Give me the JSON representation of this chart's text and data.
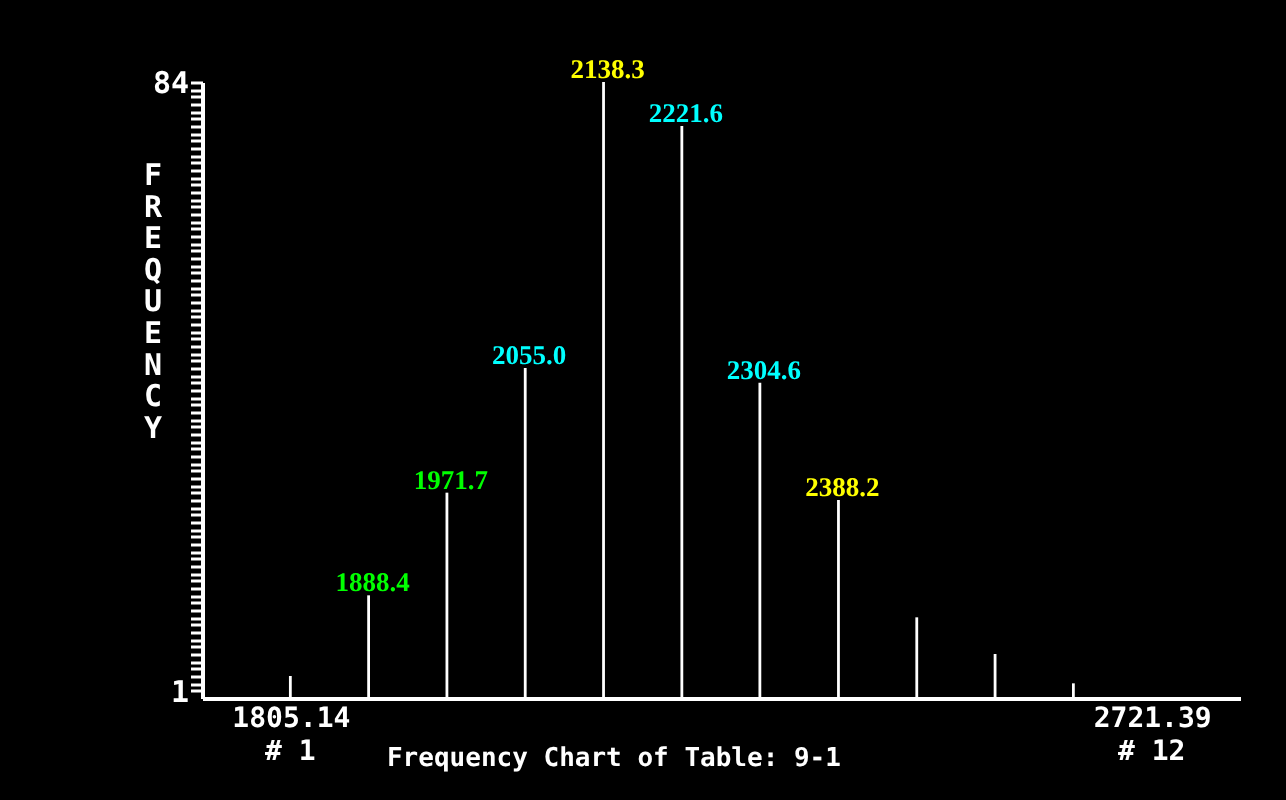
{
  "chart_data": {
    "type": "bar",
    "title": "Frequency Chart of Table: 9-1",
    "ylabel": "FREQUENCY",
    "x": [
      1805.14,
      1888.4,
      1971.7,
      2055.0,
      2138.3,
      2221.6,
      2304.6,
      2388.2,
      2471.5,
      2554.8,
      2638.1
    ],
    "series": [
      {
        "color": "#ffffff",
        "values": [
          3,
          14,
          28,
          45,
          84,
          78,
          43,
          27,
          11,
          6,
          2
        ]
      }
    ],
    "xlim": [
      1721.8,
      2804.7
    ],
    "xticks": [
      {
        "value": 1805.14,
        "label": "1805.14"
      },
      {
        "value": 2721.39,
        "label": "2721.39"
      }
    ],
    "ylim": [
      0,
      84
    ],
    "yticks": [
      1,
      {
        "value": 2,
        "label": null
      },
      {
        "value": 3,
        "label": null
      },
      {
        "value": 4,
        "label": null
      },
      {
        "value": 5,
        "label": null
      },
      {
        "value": 6,
        "label": null
      },
      {
        "value": 7,
        "label": null
      },
      {
        "value": 8,
        "label": null
      },
      {
        "value": 9,
        "label": null
      },
      {
        "value": 10,
        "label": null
      },
      {
        "value": 11,
        "label": null
      },
      {
        "value": 12,
        "label": null
      },
      {
        "value": 13,
        "label": null
      },
      {
        "value": 14,
        "label": null
      },
      {
        "value": 15,
        "label": null
      },
      {
        "value": 16,
        "label": null
      },
      {
        "value": 17,
        "label": null
      },
      {
        "value": 18,
        "label": null
      },
      {
        "value": 19,
        "label": null
      },
      {
        "value": 20,
        "label": null
      },
      {
        "value": 21,
        "label": null
      },
      {
        "value": 22,
        "label": null
      },
      {
        "value": 23,
        "label": null
      },
      {
        "value": 24,
        "label": null
      },
      {
        "value": 25,
        "label": null
      },
      {
        "value": 26,
        "label": null
      },
      {
        "value": 27,
        "label": null
      },
      {
        "value": 28,
        "label": null
      },
      {
        "value": 29,
        "label": null
      },
      {
        "value": 30,
        "label": null
      },
      {
        "value": 31,
        "label": null
      },
      {
        "value": 32,
        "label": null
      },
      {
        "value": 33,
        "label": null
      },
      {
        "value": 34,
        "label": null
      },
      {
        "value": 35,
        "label": null
      },
      {
        "value": 36,
        "label": null
      },
      {
        "value": 37,
        "label": null
      },
      {
        "value": 38,
        "label": null
      },
      {
        "value": 39,
        "label": null
      },
      {
        "value": 40,
        "label": null
      },
      {
        "value": 41,
        "label": null
      },
      {
        "value": 42,
        "label": null
      },
      {
        "value": 43,
        "label": null
      },
      {
        "value": 44,
        "label": null
      },
      {
        "value": 45,
        "label": null
      },
      {
        "value": 46,
        "label": null
      },
      {
        "value": 47,
        "label": null
      },
      {
        "value": 48,
        "label": null
      },
      {
        "value": 49,
        "label": null
      },
      {
        "value": 50,
        "label": null
      },
      {
        "value": 51,
        "label": null
      },
      {
        "value": 52,
        "label": null
      },
      {
        "value": 53,
        "label": null
      },
      {
        "value": 54,
        "label": null
      },
      {
        "value": 55,
        "label": null
      },
      {
        "value": 56,
        "label": null
      },
      {
        "value": 57,
        "label": null
      },
      {
        "value": 58,
        "label": null
      },
      {
        "value": 59,
        "label": null
      },
      {
        "value": 60,
        "label": null
      },
      {
        "value": 61,
        "label": null
      },
      {
        "value": 62,
        "label": null
      },
      {
        "value": 63,
        "label": null
      },
      {
        "value": 64,
        "label": null
      },
      {
        "value": 65,
        "label": null
      },
      {
        "value": 66,
        "label": null
      },
      {
        "value": 67,
        "label": null
      },
      {
        "value": 68,
        "label": null
      },
      {
        "value": 69,
        "label": null
      },
      {
        "value": 70,
        "label": null
      },
      {
        "value": 71,
        "label": null
      },
      {
        "value": 72,
        "label": null
      },
      {
        "value": 73,
        "label": null
      },
      {
        "value": 74,
        "label": null
      },
      {
        "value": 75,
        "label": null
      },
      {
        "value": 76,
        "label": null
      },
      {
        "value": 77,
        "label": null
      },
      {
        "value": 78,
        "label": null
      },
      {
        "value": 79,
        "label": null
      },
      {
        "value": 80,
        "label": null
      },
      {
        "value": 81,
        "label": null
      },
      {
        "value": 82,
        "label": null
      },
      {
        "value": 83,
        "label": null
      },
      84
    ],
    "annotations": [
      {
        "text": "1888.4",
        "x": 1888.4,
        "y": 14
      },
      {
        "text": "1971.7",
        "x": 1971.7,
        "y": 28
      },
      {
        "text": "2055.0",
        "x": 2055.0,
        "y": 45
      },
      {
        "text": "2138.3",
        "x": 2138.3,
        "y": 84
      },
      {
        "text": "2221.6",
        "x": 2221.6,
        "y": 78
      },
      {
        "text": "2304.6",
        "x": 2304.6,
        "y": 43
      },
      {
        "text": "2388.2",
        "x": 2388.2,
        "y": 27
      },
      "# 1",
      "# 12"
    ]
  }
}
